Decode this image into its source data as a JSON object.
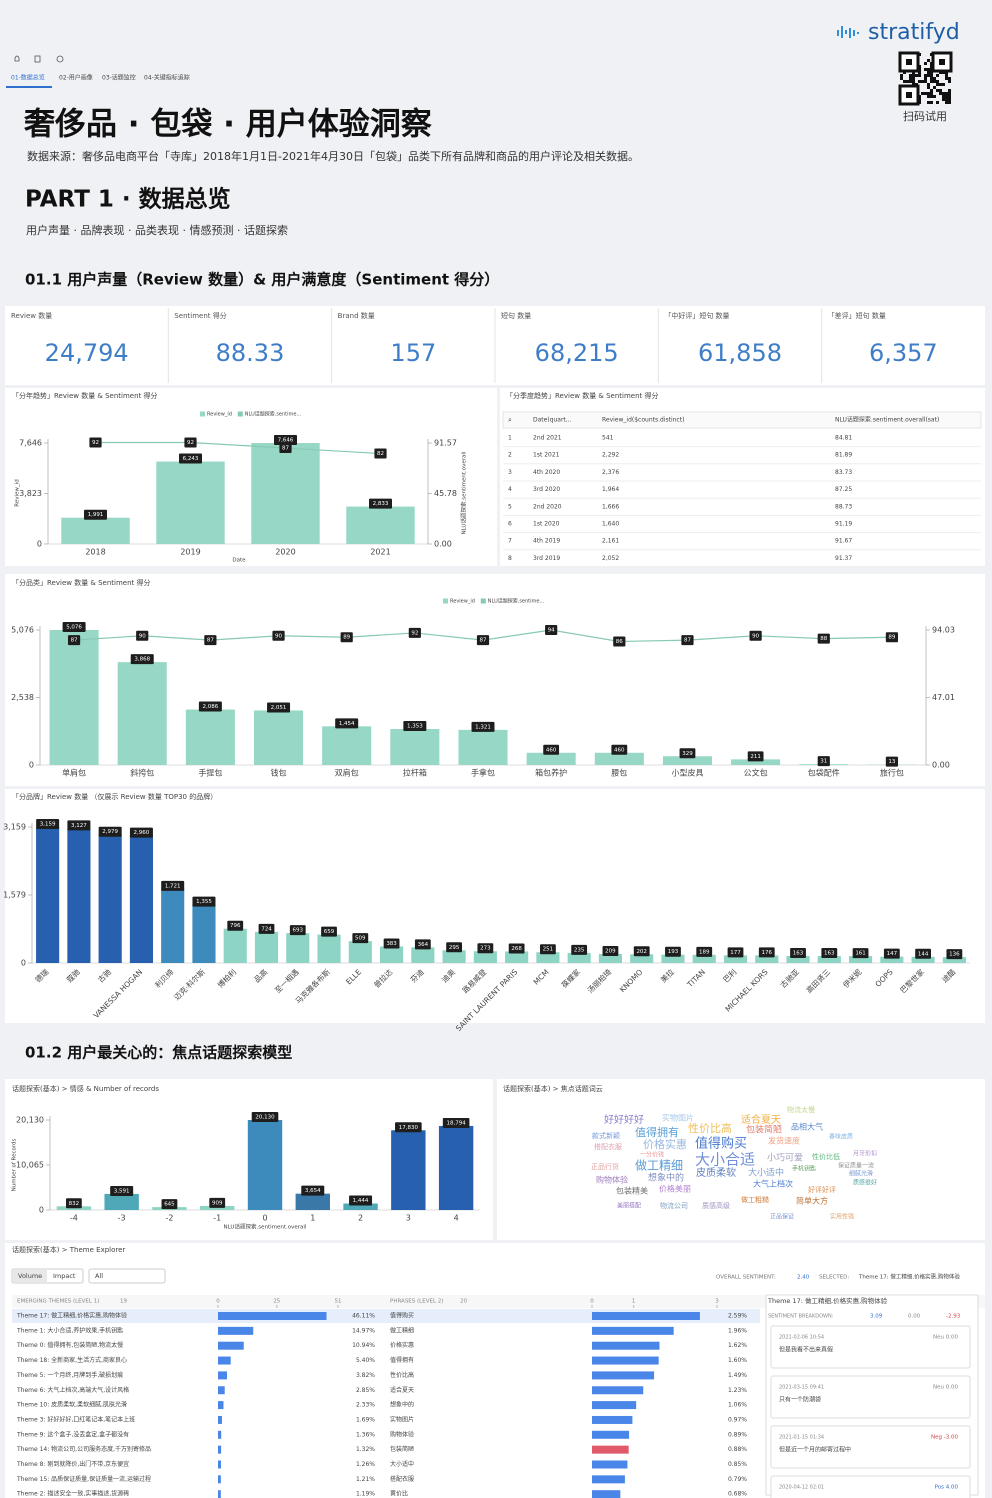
{
  "toolbar": {
    "tabs": [
      "01-数据总览",
      "02-用户画像",
      "03-话题监控",
      "04-关键指标追踪"
    ]
  },
  "brand": {
    "logo": "stratifyd",
    "qr_caption": "扫码试用"
  },
  "header": {
    "title": "奢侈品 · 包袋 · 用户体验洞察",
    "source": "数据来源：奢侈品电商平台「寺库」2018年1月1日-2021年4月30日「包袋」品类下所有品牌和商品的用户评论及相关数据。",
    "part": "PART 1 · 数据总览",
    "part_subtitle": "用户声量 · 品牌表现 · 品类表现 · 情感预测 · 话题探索"
  },
  "sections": [
    "01.1 用户声量（Review 数量）& 用户满意度（Sentiment 得分）",
    "01.2 用户最关心的：焦点话题探索模型"
  ],
  "kpis": [
    {
      "label": "Review 数量",
      "value": "24,794"
    },
    {
      "label": "Sentiment 得分",
      "value": "88.33"
    },
    {
      "label": "Brand 数量",
      "value": "157"
    },
    {
      "label": "短句 数量",
      "value": "68,215"
    },
    {
      "label": "「中好评」短句 数量",
      "value": "61,858"
    },
    {
      "label": "「差评」短句 数量",
      "value": "6,357"
    }
  ],
  "table": {
    "title": "「分季度趋势」Review 数量 & Sentiment 得分",
    "columns": [
      "Date(quart...",
      "Review_id($counts.distinct)",
      "NLU话题探索.sentiment.overall(sat)"
    ],
    "rows": [
      [
        "1",
        "2nd 2021",
        "541",
        "84.81"
      ],
      [
        "2",
        "1st 2021",
        "2,292",
        "81.89"
      ],
      [
        "3",
        "4th 2020",
        "2,376",
        "83.73"
      ],
      [
        "4",
        "3rd 2020",
        "1,964",
        "87.25"
      ],
      [
        "5",
        "2nd 2020",
        "1,666",
        "88.73"
      ],
      [
        "6",
        "1st 2020",
        "1,640",
        "91.19"
      ],
      [
        "7",
        "4th 2019",
        "2,161",
        "91.67"
      ],
      [
        "8",
        "3rd 2019",
        "2,052",
        "91.37"
      ]
    ]
  },
  "word_cloud": {
    "title": "话题探索(基本) > 焦点话题词云",
    "words": [
      {
        "text": "好好好好",
        "color": "#8a7fd0"
      },
      {
        "text": "实物图片",
        "color": "#a8c8e8"
      },
      {
        "text": "适合夏天",
        "color": "#f0b040"
      },
      {
        "text": "物流太慢",
        "color": "#c0d890"
      },
      {
        "text": "款式新颖",
        "color": "#7a9ad8"
      },
      {
        "text": "值得拥有",
        "color": "#5aa0d8"
      },
      {
        "text": "性价比高",
        "color": "#f0c060"
      },
      {
        "text": "包装简陋",
        "color": "#e08070"
      },
      {
        "text": "品相大气",
        "color": "#5a8ad0"
      },
      {
        "text": "搭配衣服",
        "color": "#e0a0b0"
      },
      {
        "text": "价格实惠",
        "color": "#9ab8e0"
      },
      {
        "text": "值得购买",
        "color": "#4a7ad0"
      },
      {
        "text": "发货速度",
        "color": "#f0a080"
      },
      {
        "text": "香味皮质",
        "color": "#80b0e0"
      },
      {
        "text": "一分价钱",
        "color": "#f09090"
      },
      {
        "text": "大小合适",
        "color": "#7090d8"
      },
      {
        "text": "小巧可爱",
        "color": "#a0a0c0"
      },
      {
        "text": "性价比低",
        "color": "#60b880"
      },
      {
        "text": "月牙形扣",
        "color": "#b090d0"
      },
      {
        "text": "正品行货",
        "color": "#e0a0a0"
      },
      {
        "text": "做工精细",
        "color": "#5a9ad8"
      },
      {
        "text": "皮质柔软",
        "color": "#6080c0"
      },
      {
        "text": "大小适中",
        "color": "#80a0d0"
      },
      {
        "text": "手机钥匙",
        "color": "#60a060"
      },
      {
        "text": "保证质量一流",
        "color": "#909090"
      },
      {
        "text": "购物体验",
        "color": "#a080c0"
      },
      {
        "text": "想象中的",
        "color": "#8090c0"
      },
      {
        "text": "质感很好",
        "color": "#50a0a0"
      },
      {
        "text": "大气上档次",
        "color": "#5080d0"
      },
      {
        "text": "细腻光滑",
        "color": "#7a9ad8"
      },
      {
        "text": "包装精美",
        "color": "#707070"
      },
      {
        "text": "价格美丽",
        "color": "#b080d0"
      },
      {
        "text": "好评好评",
        "color": "#e09050"
      },
      {
        "text": "做工粗糙",
        "color": "#d08040"
      },
      {
        "text": "简单大方",
        "color": "#c07030"
      },
      {
        "text": "美丽搭配",
        "color": "#9070c0"
      },
      {
        "text": "物流公司",
        "color": "#80a0c0"
      },
      {
        "text": "质感高级",
        "color": "#a090c0"
      },
      {
        "text": "正品保证",
        "color": "#7090d0"
      },
      {
        "text": "实用性强",
        "color": "#e0a060"
      }
    ]
  },
  "theme_explorer": {
    "title": "话题探索(基本) > Theme Explorer",
    "toggles": [
      "Volume",
      "Impact"
    ],
    "filter": "All",
    "overall_label": "OVERALL SENTIMENT:",
    "overall_value": "2.40",
    "selected_label": "SELECTED:",
    "selected_value": "Theme 17: 做工精细,价格实惠,购物体验",
    "themes_header": "EMERGING THEMES (LEVEL 1)",
    "themes_count": "19",
    "phrases_header": "PHRASES (LEVEL 2)",
    "phrases_count": "20",
    "detail_title": "Theme 17: 做工精细,价格实惠,购物体验",
    "breakdown_label": "SENTIMENT BREAKDOWN:",
    "breakdown": [
      "3.09",
      "0.00",
      "-2.93"
    ],
    "comments": [
      {
        "time": "2021-02-06 10:54",
        "text": "但是我看不出来真假",
        "sentiment": "Neu 0.00"
      },
      {
        "time": "2021-03-15 09:41",
        "text": "只有一个防潮袋",
        "sentiment": "Neu 0.00"
      },
      {
        "time": "2021-01-15 01:34",
        "text": "但是近一个月的邮寄过程中",
        "sentiment": "Neg -3.00"
      },
      {
        "time": "2020-04-12 02:01",
        "sentiment": "Pos 4.00"
      }
    ]
  },
  "chart_data": [
    {
      "type": "bar",
      "title": "「分年趋势」Review 数量 & Sentiment 得分",
      "x_label": "Date",
      "y_label": "Review_id",
      "y2_label": "NLU话题探索.sentiment.overall",
      "legend": true,
      "categories": [
        "2018",
        "2019",
        "2020",
        "2021"
      ],
      "series": [
        {
          "name": "Review_id",
          "color": "#97d7c6",
          "values": [
            1991,
            6243,
            7646,
            2833
          ],
          "value_labels": [
            "1,991",
            "6,243",
            "7,646",
            "2,833"
          ]
        },
        {
          "name": "NLU话题探索.sentime...",
          "type": "line",
          "axis": "y2",
          "color": "#86c9b5",
          "values": [
            92,
            92,
            87,
            82
          ]
        }
      ],
      "ylim": [
        0,
        7646
      ],
      "yticks": [
        0,
        {
          "value": 3823,
          "label": "3,823"
        },
        {
          "value": 7646,
          "label": "7,646"
        }
      ],
      "y2lim": [
        0,
        91.57
      ],
      "y2ticks": [
        {
          "value": 0,
          "label": "0.00"
        },
        45.78,
        91.57
      ]
    },
    {
      "type": "bar",
      "title": "「分品类」Review 数量 & Sentiment 得分",
      "legend": true,
      "categories": [
        "单肩包",
        "斜挎包",
        "手提包",
        "钱包",
        "双肩包",
        "拉杆箱",
        "手拿包",
        "箱包养护",
        "腰包",
        "小型皮具",
        "公文包",
        "包袋配件",
        "旅行包"
      ],
      "series": [
        {
          "name": "Review_id",
          "color": "#97d7c6",
          "values": [
            5076,
            3868,
            2086,
            2051,
            1454,
            1353,
            1321,
            460,
            460,
            329,
            211,
            31,
            13
          ],
          "value_labels": [
            "5,076",
            "3,868",
            "2,086",
            "2,051",
            "1,454",
            "1,353",
            "1,321",
            "460",
            "460",
            "329",
            "211",
            "31",
            "13"
          ]
        },
        {
          "name": "NLU话题探索.sentime...",
          "type": "line",
          "axis": "y2",
          "color": "#86c9b5",
          "values": [
            87,
            90,
            87,
            90,
            89,
            92,
            87,
            94,
            86,
            87,
            90,
            88,
            89
          ]
        }
      ],
      "ylim": [
        0,
        5076
      ],
      "yticks": [
        0,
        {
          "value": 2538,
          "label": "2,538"
        },
        {
          "value": 5076,
          "label": "5,076"
        }
      ],
      "y2lim": [
        0,
        94.03
      ],
      "y2ticks": [
        {
          "value": 0,
          "label": "0.00"
        },
        47.01,
        94.03
      ]
    },
    {
      "type": "bar",
      "title": "「分品牌」Review 数量 （仅展示 Review 数量 TOP30 的品牌）",
      "categories": [
        "德瑞",
        "蔻驰",
        "古驰",
        "VANESSA HOGAN",
        "利贝缔",
        "迈克·科尔斯",
        "博柏利",
        "品高",
        "至一相遇",
        "马克雅各布斯",
        "ELLE",
        "普拉达",
        "芬迪",
        "迪奥",
        "路易威登",
        "SAINT LAURENT PARIS",
        "MCM",
        "葆蝶家",
        "汤丽柏琦",
        "KNOMO",
        "美拉",
        "TITAN",
        "巴利",
        "MICHAEL KORS",
        "古驰亚",
        "高田贤三",
        "伊米妮",
        "OOPS",
        "巴黎世家",
        "途酷"
      ],
      "series": [
        {
          "name": "Review_id",
          "colors": [
            "#2760ae",
            "#2760ae",
            "#2760ae",
            "#2760ae",
            "#3d8bbd",
            "#3d8bbd",
            "#8ed4c4",
            "#8ed4c4",
            "#8ed4c4",
            "#8ed4c4",
            "#8ed4c4",
            "#8ed4c4",
            "#8ed4c4",
            "#8ed4c4",
            "#8ed4c4",
            "#8ed4c4",
            "#8ed4c4",
            "#8ed4c4",
            "#8ed4c4",
            "#8ed4c4",
            "#8ed4c4",
            "#8ed4c4",
            "#8ed4c4",
            "#8ed4c4",
            "#8ed4c4",
            "#8ed4c4",
            "#8ed4c4",
            "#8ed4c4",
            "#8ed4c4",
            "#8ed4c4"
          ],
          "values": [
            3159,
            3127,
            2979,
            2960,
            1721,
            1355,
            796,
            724,
            693,
            659,
            509,
            383,
            364,
            295,
            273,
            268,
            251,
            235,
            209,
            202,
            193,
            189,
            177,
            176,
            163,
            163,
            161,
            147,
            144,
            136
          ],
          "value_labels": [
            "3,159",
            "3,127",
            "2,979",
            "2,960",
            "1,721",
            "1,355",
            "796",
            "724",
            "693",
            "659",
            "509",
            "383",
            "364",
            "295",
            "273",
            "268",
            "251",
            "235",
            "209",
            "202",
            "193",
            "189",
            "177",
            "176",
            "163",
            "163",
            "161",
            "147",
            "144",
            "136"
          ]
        }
      ],
      "ylim": [
        0,
        3159
      ],
      "yticks": [
        0,
        {
          "value": 1579,
          "label": "1,579"
        },
        {
          "value": 3159,
          "label": "3,159"
        }
      ]
    },
    {
      "type": "bar",
      "title": "话题探索(基本) > 情感 & Number of records",
      "x_label": "NLU话题探索.sentiment.overall",
      "y_label": "Number of Records",
      "categories": [
        -4,
        -3,
        -2,
        -1,
        0,
        1,
        2,
        3,
        4
      ],
      "series": [
        {
          "name": "Number of Records",
          "colors": [
            "#8ed4c4",
            "#4ea8b8",
            "#8ed4c4",
            "#8ed4c4",
            "#3d8bbd",
            "#3a78a8",
            "#4ea8b8",
            "#2760ae",
            "#2760ae"
          ],
          "values": [
            832,
            3591,
            645,
            909,
            20130,
            3654,
            1444,
            17830,
            18794
          ],
          "value_labels": [
            "832",
            "3,591",
            "645",
            "909",
            "20,130",
            "3,654",
            "1,444",
            "17,830",
            "18,794"
          ]
        }
      ],
      "ylim": [
        0,
        20130
      ],
      "yticks": [
        0,
        {
          "value": 10065,
          "label": "10,065"
        },
        {
          "value": 20130,
          "label": "20,130"
        }
      ]
    },
    {
      "type": "bar",
      "horizontal": true,
      "color": "#4a86e8",
      "categories": [
        "Theme 17: 做工精细,价格实惠,购物体验",
        "Theme 1: 大小合适,养护效果,手机钥匙",
        "Theme 0: 值得拥有,包装简陋,物流太慢",
        "Theme 18: 全新商家,生活方式,商家良心",
        "Theme 5: 一个月终,月牌到手,破损划痕",
        "Theme 6: 大气上档次,高端大气,设计风格",
        "Theme 10: 皮质柔软,柔软细腻,肌肤光滑",
        "Theme 3: 好好好好,口红笔记本,笔记本上班",
        "Theme 9: 这个盒子,没丢盒定,盒子都没有",
        "Theme 14: 物流公司,公司服务态度,千万别寄修品",
        "Theme 8: 刚到就降价,出门不带,京东便宜",
        "Theme 15: 品质保证质量,保证质量一流,运输过程",
        "Theme 2: 描述安全一致,实事描述,货源稀"
      ],
      "values": [
        46.11,
        14.97,
        10.94,
        5.4,
        3.82,
        2.85,
        2.33,
        1.69,
        1.36,
        1.32,
        1.26,
        1.21,
        1.19
      ],
      "value_labels": [
        "46.11%",
        "14.97%",
        "10.94%",
        "5.40%",
        "3.82%",
        "2.85%",
        "2.33%",
        "1.69%",
        "1.36%",
        "1.32%",
        "1.26%",
        "1.21%",
        "1.19%"
      ],
      "xlim": [
        0,
        51
      ],
      "xticks": [
        0,
        25,
        51
      ]
    },
    {
      "type": "bar",
      "horizontal": true,
      "colors": [
        "#4a86e8",
        "#4a86e8",
        "#4a86e8",
        "#4a86e8",
        "#4a86e8",
        "#4a86e8",
        "#4a86e8",
        "#4a86e8",
        "#4a86e8",
        "#e05a6a",
        "#4a86e8",
        "#4a86e8",
        "#4a86e8"
      ],
      "categories": [
        "值得购买",
        "做工精细",
        "价格实惠",
        "值得拥有",
        "性价比高",
        "适合夏天",
        "想象中的",
        "实物图片",
        "购物体验",
        "包装简陋",
        "大小适中",
        "搭配衣服",
        "黄价比"
      ],
      "values": [
        2.59,
        1.96,
        1.62,
        1.6,
        1.49,
        1.23,
        1.06,
        0.97,
        0.89,
        0.88,
        0.85,
        0.79,
        0.68
      ],
      "value_labels": [
        "2.59%",
        "1.96%",
        "1.62%",
        "1.60%",
        "1.49%",
        "1.23%",
        "1.06%",
        "0.97%",
        "0.89%",
        "0.88%",
        "0.85%",
        "0.79%",
        "0.68%"
      ],
      "xlim": [
        0,
        3
      ],
      "xticks": [
        0,
        1,
        3
      ]
    }
  ]
}
